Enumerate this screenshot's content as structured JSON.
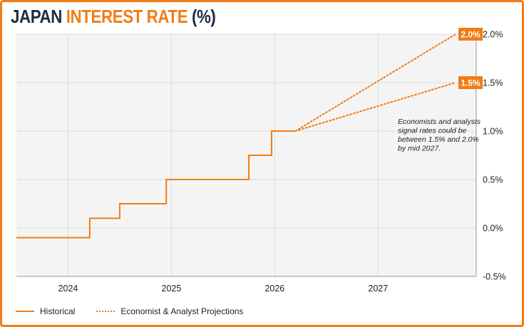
{
  "title": {
    "part1": "JAPAN ",
    "part2": "INTEREST RATE ",
    "part3": "(%)"
  },
  "colors": {
    "accent": "#f07d16",
    "title_dark": "#1f2a44",
    "plot_bg": "#f4f4f4",
    "grid": "#dddddd"
  },
  "chart_data": {
    "type": "line",
    "title": "JAPAN INTEREST RATE (%)",
    "xlabel": "",
    "ylabel": "",
    "xlim": [
      2023.5,
      2027.95
    ],
    "ylim": [
      -0.5,
      2.0
    ],
    "x_ticks": [
      2024,
      2025,
      2026,
      2027
    ],
    "y_ticks": [
      -0.5,
      0.0,
      0.5,
      1.0,
      1.5,
      2.0
    ],
    "y_tick_labels": [
      "-0.5%",
      "0.0%",
      "0.5%",
      "1.0%",
      "1.5%",
      "2.0%"
    ],
    "grid": true,
    "legend_position": "bottom-left",
    "series": [
      {
        "name": "Historical",
        "style": "step",
        "points": [
          [
            2023.5,
            -0.1
          ],
          [
            2024.21,
            -0.1
          ],
          [
            2024.21,
            0.1
          ],
          [
            2024.5,
            0.1
          ],
          [
            2024.5,
            0.25
          ],
          [
            2024.81,
            0.25
          ],
          [
            2024.81,
            0.25
          ],
          [
            2024.95,
            0.25
          ],
          [
            2024.95,
            0.5
          ],
          [
            2025.75,
            0.5
          ],
          [
            2025.75,
            0.75
          ],
          [
            2025.97,
            0.75
          ],
          [
            2025.97,
            1.0
          ],
          [
            2026.2,
            1.0
          ]
        ]
      },
      {
        "name": "Economist & Analyst Projections",
        "style": "dotted",
        "lines": [
          [
            [
              2026.2,
              1.0
            ],
            [
              2027.75,
              2.0
            ]
          ],
          [
            [
              2026.2,
              1.0
            ],
            [
              2027.75,
              1.5
            ]
          ]
        ]
      }
    ],
    "end_labels": [
      {
        "value": 2.0,
        "text": "2.0%"
      },
      {
        "value": 1.5,
        "text": "1.5%"
      }
    ],
    "annotation": {
      "lines": [
        "Economists and analysts",
        "signal rates could be",
        "between 1.5% and 2.0%",
        "by mid 2027."
      ]
    }
  },
  "legend": {
    "historical": "Historical",
    "projections": "Economist & Analyst Projections"
  }
}
